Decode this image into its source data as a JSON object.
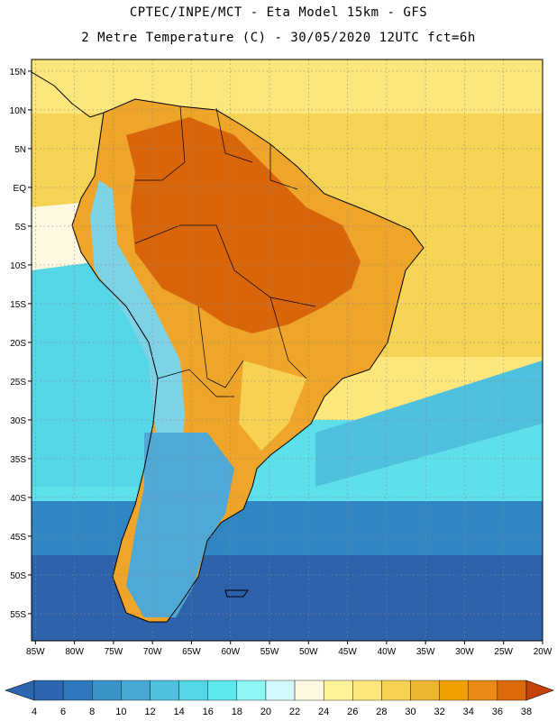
{
  "header": {
    "line1": "CPTEC/INPE/MCT -  Eta Model 15km - GFS",
    "line2": "2 Metre Temperature (C) - 30/05/2020 12UTC fct=6h"
  },
  "map": {
    "lat_labels": [
      "15N",
      "10N",
      "5N",
      "EQ",
      "5S",
      "10S",
      "15S",
      "20S",
      "25S",
      "30S",
      "35S",
      "40S",
      "45S",
      "50S",
      "55S"
    ],
    "lat_values": [
      15,
      10,
      5,
      0,
      -5,
      -10,
      -15,
      -20,
      -25,
      -30,
      -35,
      -40,
      -45,
      -50,
      -55
    ],
    "lon_labels": [
      "85W",
      "80W",
      "75W",
      "70W",
      "65W",
      "60W",
      "55W",
      "50W",
      "45W",
      "40W",
      "35W",
      "30W",
      "25W",
      "20W"
    ],
    "lon_values": [
      -85,
      -80,
      -75,
      -70,
      -65,
      -60,
      -55,
      -50,
      -45,
      -40,
      -35,
      -30,
      -25,
      -20
    ],
    "lon_range": [
      -85.5,
      -20
    ],
    "lat_range": [
      -58.5,
      16.5
    ]
  },
  "colorbar": {
    "labels": [
      "4",
      "6",
      "8",
      "10",
      "12",
      "14",
      "16",
      "18",
      "20",
      "22",
      "24",
      "26",
      "28",
      "30",
      "32",
      "34",
      "36",
      "38"
    ],
    "colors": [
      "#2d66b0",
      "#2f78bb",
      "#3b93c8",
      "#47a9d3",
      "#4fc0de",
      "#55d6e7",
      "#5be9ee",
      "#8ff7f7",
      "#d2f8fb",
      "#fdf8e2",
      "#fdf39a",
      "#fde67c",
      "#f6d152",
      "#eeb630",
      "#f0a000",
      "#e98a17",
      "#dc6a0a",
      "#c54208"
    ]
  },
  "temperature_zones": {
    "ocean_warm_color": "#f5d355",
    "ocean_cool_color": "#5ee0ea",
    "ocean_cold_color": "#3186c2",
    "ocean_coldest_color": "#2d62aa",
    "land_hot_color": "#d9650a",
    "land_warm_color": "#eea52a",
    "andes_cold_color": "#7ed2e6",
    "patagonia_color": "#4fa8d6"
  }
}
